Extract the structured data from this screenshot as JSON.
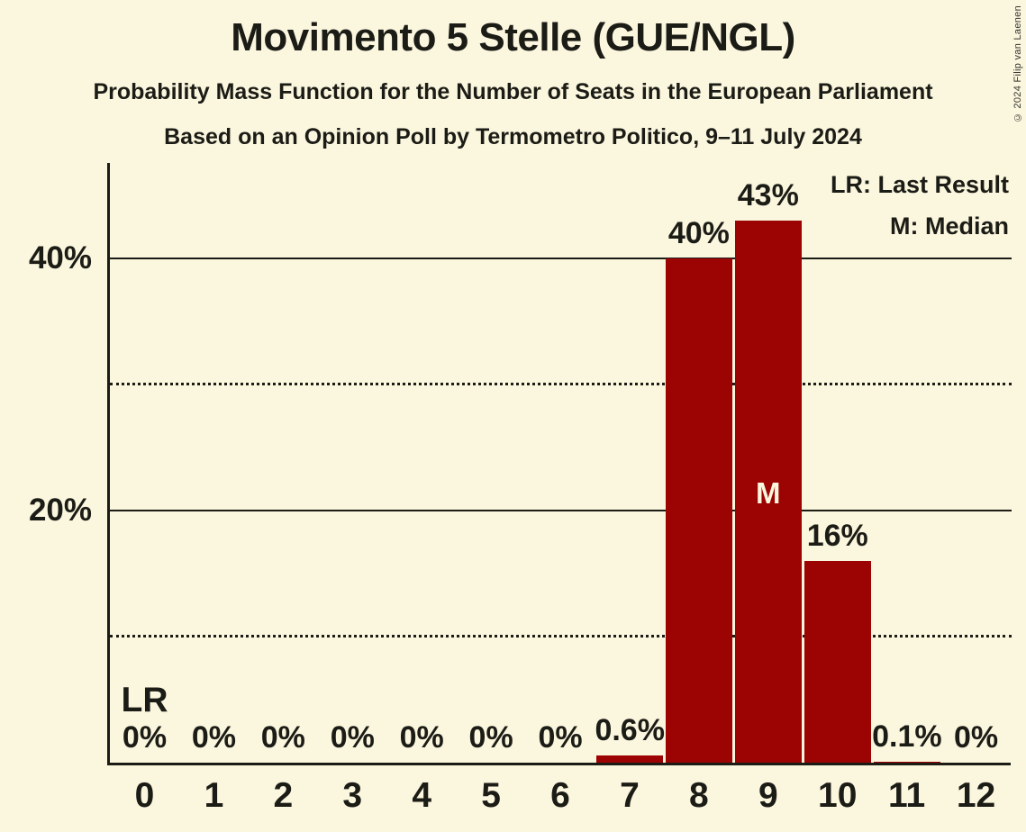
{
  "title": "Movimento 5 Stelle (GUE/NGL)",
  "subtitle": "Probability Mass Function for the Number of Seats in the European Parliament",
  "poll_info": "Based on an Opinion Poll by Termometro Politico, 9–11 July 2024",
  "copyright": "© 2024 Filip van Laenen",
  "legend": {
    "last_result": "LR: Last Result",
    "median": "M: Median"
  },
  "colors": {
    "background": "#FBF6DE",
    "bar": "#9C0303",
    "text": "#1C1C16",
    "line": "#1C1C16",
    "median_label": "#FBF6DE"
  },
  "chart_data": {
    "type": "bar",
    "title": "Movimento 5 Stelle (GUE/NGL)",
    "xlabel": "",
    "ylabel": "",
    "categories": [
      "0",
      "1",
      "2",
      "3",
      "4",
      "5",
      "6",
      "7",
      "8",
      "9",
      "10",
      "11",
      "12"
    ],
    "values": [
      0,
      0,
      0,
      0,
      0,
      0,
      0,
      0.6,
      40,
      43,
      16,
      0.1,
      0
    ],
    "bar_labels": [
      "0%",
      "0%",
      "0%",
      "0%",
      "0%",
      "0%",
      "0%",
      "0.6%",
      "40%",
      "43%",
      "16%",
      "0.1%",
      "0%"
    ],
    "ylim": [
      0,
      47.5
    ],
    "grid": true,
    "legend_position": "top-right",
    "y_ticks": [
      {
        "value": 40,
        "label": "40%"
      },
      {
        "value": 20,
        "label": "20%"
      }
    ],
    "gridlines": [
      {
        "value": 40,
        "style": "solid"
      },
      {
        "value": 30,
        "style": "dotted"
      },
      {
        "value": 20,
        "style": "solid"
      },
      {
        "value": 10,
        "style": "dotted"
      }
    ],
    "markers": {
      "median_category": "9",
      "median_label": "M",
      "last_result_category": "0",
      "last_result_label": "LR"
    }
  }
}
